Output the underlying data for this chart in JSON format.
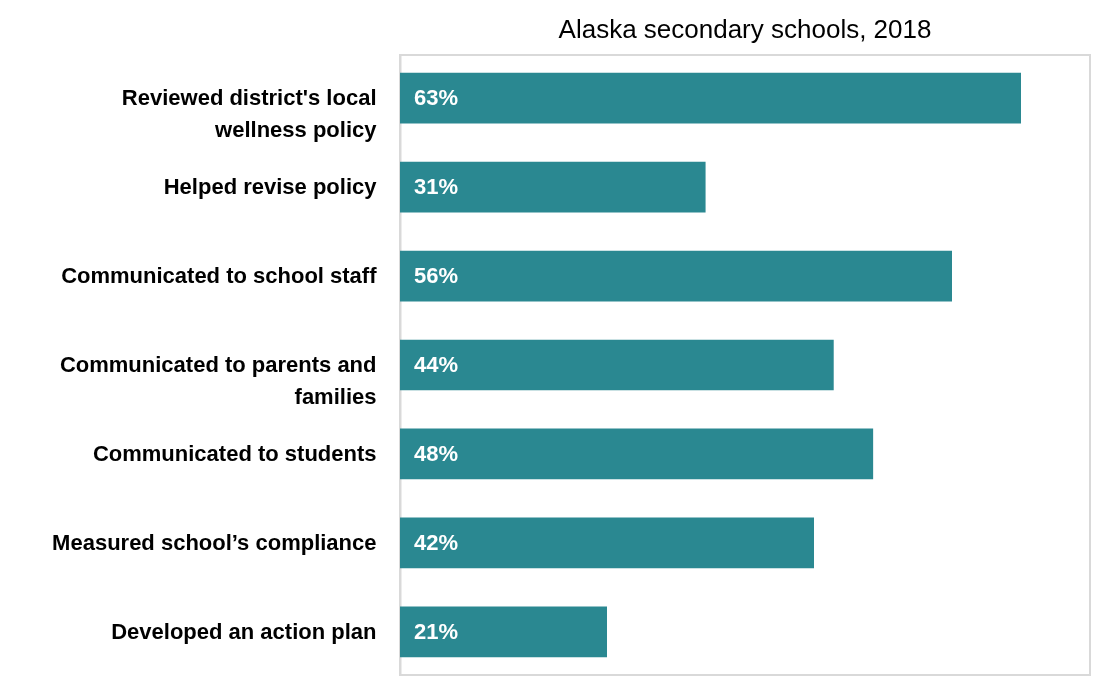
{
  "chart_data": {
    "type": "bar",
    "orientation": "horizontal",
    "title": "Alaska secondary schools, 2018",
    "categories": [
      "Reviewed district's local wellness policy",
      "Helped revise policy",
      "Communicated to school staff",
      "Communicated to parents and families",
      "Communicated to students",
      "Measured school’s compliance",
      "Developed an action plan"
    ],
    "values": [
      63,
      31,
      56,
      44,
      48,
      42,
      21
    ],
    "value_labels": [
      "63%",
      "31%",
      "56%",
      "44%",
      "48%",
      "42%",
      "21%"
    ],
    "color": "#2a8891",
    "xlim": [
      0,
      70
    ]
  }
}
